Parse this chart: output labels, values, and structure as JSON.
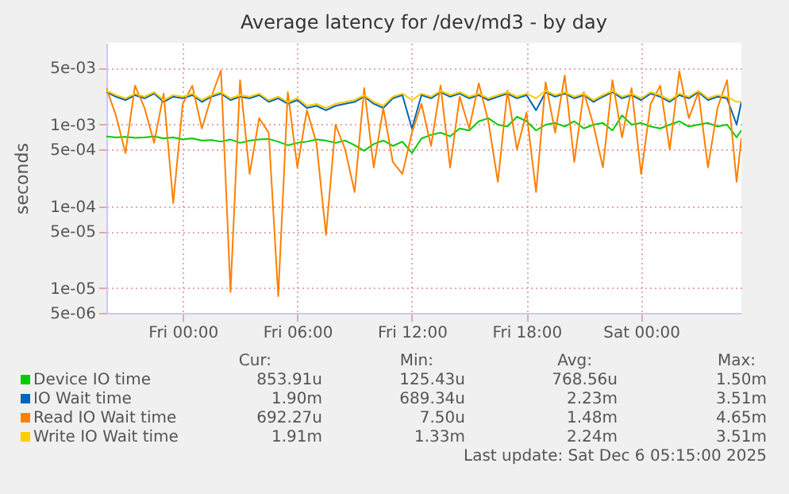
{
  "chart_data": {
    "type": "line",
    "title": "Average latency for /dev/md3 - by day",
    "ylabel": "seconds",
    "x": [
      "2025-12-04T20:00",
      "2025-12-04T20:30",
      "2025-12-04T21:00",
      "2025-12-04T21:30",
      "2025-12-04T22:00",
      "2025-12-04T22:30",
      "2025-12-04T23:00",
      "2025-12-04T23:30",
      "2025-12-05T00:00",
      "2025-12-05T00:30",
      "2025-12-05T01:00",
      "2025-12-05T01:30",
      "2025-12-05T02:00",
      "2025-12-05T02:30",
      "2025-12-05T03:00",
      "2025-12-05T03:30",
      "2025-12-05T04:00",
      "2025-12-05T04:30",
      "2025-12-05T05:00",
      "2025-12-05T05:30",
      "2025-12-05T06:00",
      "2025-12-05T06:30",
      "2025-12-05T07:00",
      "2025-12-05T07:30",
      "2025-12-05T08:00",
      "2025-12-05T08:30",
      "2025-12-05T09:00",
      "2025-12-05T09:30",
      "2025-12-05T10:00",
      "2025-12-05T10:30",
      "2025-12-05T11:00",
      "2025-12-05T11:30",
      "2025-12-05T12:00",
      "2025-12-05T12:30",
      "2025-12-05T13:00",
      "2025-12-05T13:30",
      "2025-12-05T14:00",
      "2025-12-05T14:30",
      "2025-12-05T15:00",
      "2025-12-05T15:30",
      "2025-12-05T16:00",
      "2025-12-05T16:30",
      "2025-12-05T17:00",
      "2025-12-05T17:30",
      "2025-12-05T18:00",
      "2025-12-05T18:30",
      "2025-12-05T19:00",
      "2025-12-05T19:30",
      "2025-12-05T20:00",
      "2025-12-05T20:30",
      "2025-12-05T21:00",
      "2025-12-05T21:30",
      "2025-12-05T22:00",
      "2025-12-05T22:30",
      "2025-12-05T23:00",
      "2025-12-05T23:30",
      "2025-12-06T00:00",
      "2025-12-06T00:30",
      "2025-12-06T01:00",
      "2025-12-06T01:30",
      "2025-12-06T02:00",
      "2025-12-06T02:30",
      "2025-12-06T03:00",
      "2025-12-06T03:30",
      "2025-12-06T04:00",
      "2025-12-06T04:30",
      "2025-12-06T05:00",
      "2025-12-06T05:15"
    ],
    "xlim": [
      "2025-12-04T20:00",
      "2025-12-06T05:15"
    ],
    "xticks": [
      {
        "value": "2025-12-05T00:00",
        "label": "Fri 00:00"
      },
      {
        "value": "2025-12-05T06:00",
        "label": "Fri 06:00"
      },
      {
        "value": "2025-12-05T12:00",
        "label": "Fri 12:00"
      },
      {
        "value": "2025-12-05T18:00",
        "label": "Fri 18:00"
      },
      {
        "value": "2025-12-06T00:00",
        "label": "Sat 00:00"
      }
    ],
    "ylim": [
      5e-06,
      0.01
    ],
    "yticks": [
      {
        "value": 5e-06,
        "label": "5e-06"
      },
      {
        "value": 1e-05,
        "label": "1e-05"
      },
      {
        "value": 5e-05,
        "label": "5e-05"
      },
      {
        "value": 0.0001,
        "label": "1e-04"
      },
      {
        "value": 0.0005,
        "label": "5e-04"
      },
      {
        "value": 0.001,
        "label": "1e-03"
      },
      {
        "value": 0.005,
        "label": "5e-03"
      }
    ],
    "log": true,
    "grid": true,
    "legend": "bottom",
    "series": [
      {
        "name": "Device IO time",
        "color": "#00cc00",
        "values": [
          0.00072,
          0.0007,
          0.00071,
          0.00069,
          0.0007,
          0.00072,
          0.00068,
          0.0007,
          0.00066,
          0.00068,
          0.00064,
          0.00065,
          0.00062,
          0.00066,
          0.0006,
          0.00064,
          0.00066,
          0.00067,
          0.00062,
          0.00056,
          0.0006,
          0.00062,
          0.00066,
          0.00064,
          0.0006,
          0.00064,
          0.00056,
          0.00048,
          0.00058,
          0.00064,
          0.00055,
          0.00062,
          0.00045,
          0.00068,
          0.00075,
          0.0008,
          0.00072,
          0.0009,
          0.00085,
          0.0011,
          0.0012,
          0.001,
          0.00095,
          0.00125,
          0.0011,
          0.00085,
          0.001,
          0.00105,
          0.00095,
          0.0011,
          0.0009,
          0.001,
          0.00105,
          0.00085,
          0.0013,
          0.001,
          0.00105,
          0.00095,
          0.0009,
          0.001,
          0.0011,
          0.00095,
          0.001,
          0.00105,
          0.00095,
          0.001,
          0.0007,
          0.000854
        ]
      },
      {
        "name": "IO Wait time",
        "color": "#0066b3",
        "values": [
          0.0025,
          0.0022,
          0.002,
          0.0023,
          0.0021,
          0.0024,
          0.0019,
          0.0022,
          0.0021,
          0.0023,
          0.0019,
          0.0022,
          0.0024,
          0.002,
          0.0022,
          0.0021,
          0.0023,
          0.0019,
          0.0021,
          0.0018,
          0.002,
          0.0016,
          0.0017,
          0.0015,
          0.0017,
          0.0018,
          0.0019,
          0.0022,
          0.0018,
          0.0016,
          0.0021,
          0.0023,
          0.0009,
          0.0023,
          0.0021,
          0.0025,
          0.0022,
          0.0024,
          0.0021,
          0.0023,
          0.002,
          0.0022,
          0.0024,
          0.0021,
          0.0023,
          0.0015,
          0.0025,
          0.0022,
          0.0024,
          0.0021,
          0.0023,
          0.0019,
          0.0022,
          0.0025,
          0.0021,
          0.0023,
          0.002,
          0.0024,
          0.0022,
          0.0019,
          0.0023,
          0.0021,
          0.0025,
          0.002,
          0.0022,
          0.0021,
          0.001,
          0.0019
        ]
      },
      {
        "name": "Read IO Wait time",
        "color": "#ff8000",
        "values": [
          0.0028,
          0.0013,
          0.00045,
          0.003,
          0.0016,
          0.0006,
          0.0024,
          0.00011,
          0.0018,
          0.003,
          0.0009,
          0.0022,
          0.0046,
          9e-06,
          0.0035,
          0.00025,
          0.0012,
          0.0008,
          8e-06,
          0.0025,
          0.0003,
          0.0015,
          0.0006,
          4.5e-05,
          0.001,
          0.0005,
          0.00015,
          0.0028,
          0.0003,
          0.0016,
          0.00035,
          0.00025,
          0.0008,
          0.0018,
          0.00055,
          0.003,
          0.0003,
          0.0022,
          0.0009,
          0.0032,
          0.0011,
          0.0002,
          0.0026,
          0.0005,
          0.0014,
          0.00015,
          0.0033,
          0.0008,
          0.004,
          0.00035,
          0.0025,
          0.001,
          0.0003,
          0.0035,
          0.0007,
          0.0028,
          0.00025,
          0.0018,
          0.003,
          0.0005,
          0.0045,
          0.0012,
          0.0025,
          0.0003,
          0.0016,
          0.0035,
          0.0002,
          0.00069
        ]
      },
      {
        "name": "Write IO Wait time",
        "color": "#ffcc00",
        "values": [
          0.0026,
          0.0023,
          0.0021,
          0.0024,
          0.0022,
          0.0025,
          0.002,
          0.0023,
          0.0022,
          0.0024,
          0.002,
          0.0023,
          0.0025,
          0.0021,
          0.0023,
          0.0022,
          0.0024,
          0.002,
          0.0022,
          0.0019,
          0.0021,
          0.0017,
          0.0018,
          0.0016,
          0.0018,
          0.0019,
          0.002,
          0.0023,
          0.0019,
          0.0017,
          0.0022,
          0.0024,
          0.002,
          0.0024,
          0.0022,
          0.0026,
          0.0023,
          0.0025,
          0.0022,
          0.0024,
          0.0021,
          0.0023,
          0.0025,
          0.0022,
          0.0024,
          0.0021,
          0.0026,
          0.0023,
          0.0025,
          0.0022,
          0.0024,
          0.002,
          0.0023,
          0.0026,
          0.0022,
          0.0024,
          0.0021,
          0.0025,
          0.0023,
          0.002,
          0.0024,
          0.0022,
          0.0026,
          0.0021,
          0.0023,
          0.0022,
          0.0019,
          0.00191
        ]
      }
    ],
    "annotations": [
      "Cur:",
      "Min:",
      "Avg:",
      "Max:",
      "853.91u",
      "125.43u",
      "768.56u",
      "1.50m",
      "1.90m",
      "689.34u",
      "2.23m",
      "3.51m",
      "692.27u",
      "7.50u",
      "1.48m",
      "4.65m",
      "1.91m",
      "1.33m",
      "2.24m",
      "3.51m",
      "Last update: Sat Dec  6 05:15:00 2025"
    ]
  }
}
